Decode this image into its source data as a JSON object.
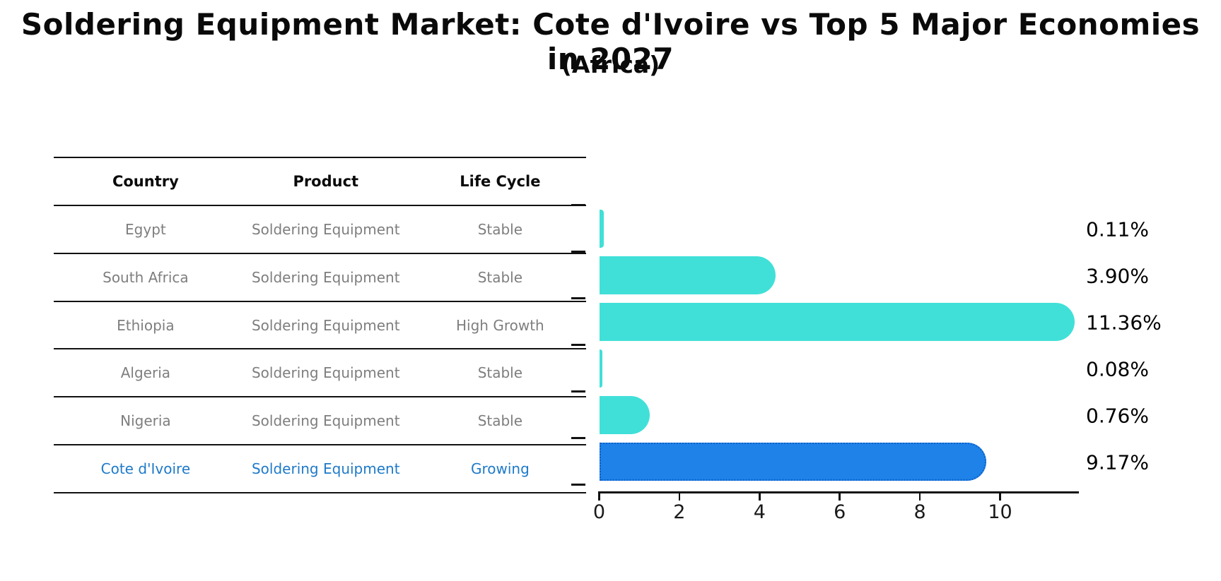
{
  "title": "Soldering Equipment Market: Cote d'Ivoire vs Top 5 Major Economies in 2027",
  "subtitle": "(Africa)",
  "table": {
    "headers": [
      "Country",
      "Product",
      "Life Cycle"
    ],
    "rows": [
      {
        "country": "Egypt",
        "product": "Soldering Equipment",
        "life_cycle": "Stable",
        "highlight": false
      },
      {
        "country": "South Africa",
        "product": "Soldering Equipment",
        "life_cycle": "Stable",
        "highlight": false
      },
      {
        "country": "Ethiopia",
        "product": "Soldering Equipment",
        "life_cycle": "High Growth",
        "highlight": false
      },
      {
        "country": "Algeria",
        "product": "Soldering Equipment",
        "life_cycle": "Stable",
        "highlight": false
      },
      {
        "country": "Nigeria",
        "product": "Soldering Equipment",
        "life_cycle": "Stable",
        "highlight": false
      },
      {
        "country": "Cote d'Ivoire",
        "product": "Soldering Equipment",
        "life_cycle": "Growing",
        "highlight": true
      }
    ]
  },
  "chart_data": {
    "type": "bar",
    "orientation": "horizontal",
    "title": "Soldering Equipment Market: Cote d'Ivoire vs Top 5 Major Economies in 2027",
    "subtitle": "(Africa)",
    "categories": [
      "Egypt",
      "South Africa",
      "Ethiopia",
      "Algeria",
      "Nigeria",
      "Cote d'Ivoire"
    ],
    "values": [
      0.11,
      3.9,
      11.36,
      0.08,
      0.76,
      9.17
    ],
    "value_labels": [
      "0.11%",
      "3.90%",
      "11.36%",
      "0.08%",
      "0.76%",
      "9.17%"
    ],
    "x_ticks": [
      0,
      2,
      4,
      6,
      8,
      10
    ],
    "x_tick_labels": [
      "0",
      "2",
      "4",
      "6",
      "8",
      "10"
    ],
    "xlim": [
      0,
      11.95
    ],
    "grid": false,
    "legend": false,
    "bar_color": "#40E0D8",
    "highlight_index": 5,
    "highlight_bar_color": "#1E82E8",
    "highlight_bar_border_color": "#0E5FC8",
    "highlight_text_color": "#1E7AC9"
  },
  "colors": {
    "background": "#FFFFFF",
    "table_line": "#111111",
    "header_text": "#0A0A0A",
    "body_text": "#7E7E7E",
    "axis": "#111111",
    "value_label": "#000000"
  }
}
